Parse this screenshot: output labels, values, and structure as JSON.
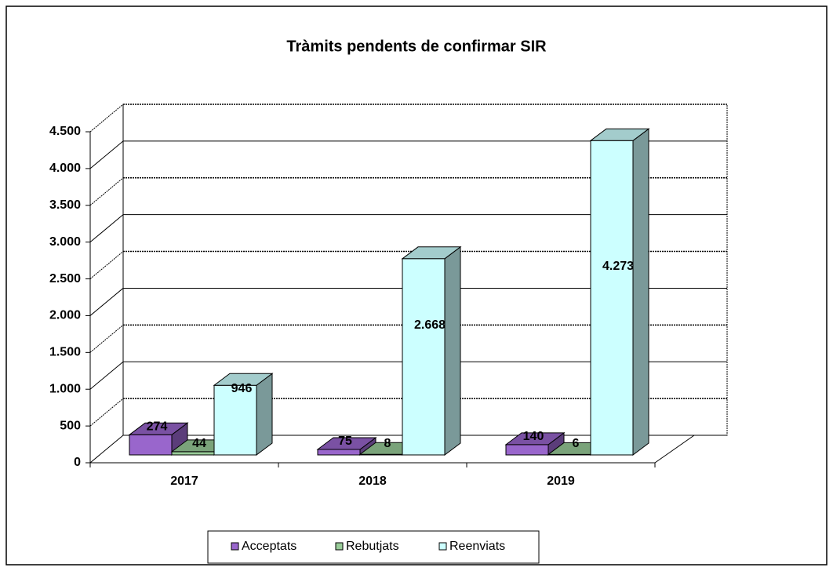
{
  "chart_data": {
    "type": "bar3d",
    "title": "Tràmits pendents de confirmar SIR",
    "categories": [
      "2017",
      "2018",
      "2019"
    ],
    "series": [
      {
        "name": "Acceptats",
        "color": "#9966cc",
        "values": [
          274,
          75,
          140
        ]
      },
      {
        "name": "Rebutjats",
        "color": "#99cc99",
        "values": [
          44,
          8,
          6
        ]
      },
      {
        "name": "Reenviats",
        "color": "#ccffff",
        "values": [
          946,
          2668,
          4273
        ],
        "value_labels": [
          "946",
          "2.668",
          "4.273"
        ]
      }
    ],
    "ylim": [
      0,
      4500
    ],
    "yticks": [
      0,
      500,
      {
        "value": 1000,
        "label": "1.000"
      },
      {
        "value": 1500,
        "label": "1.500"
      },
      {
        "value": 2000,
        "label": "2.000"
      },
      {
        "value": 2500,
        "label": "2.500"
      },
      {
        "value": 3000,
        "label": "3.000"
      },
      {
        "value": 3500,
        "label": "3.500"
      },
      {
        "value": 4000,
        "label": "4.000"
      },
      {
        "value": 4500,
        "label": "4.500"
      }
    ],
    "grid": true,
    "legend": "bottom"
  }
}
